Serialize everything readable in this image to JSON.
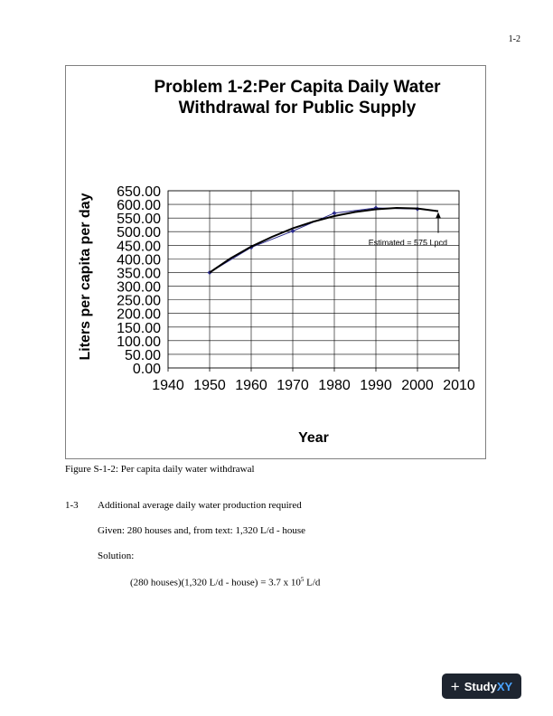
{
  "page": {
    "number": "1-2",
    "caption": "Figure S-1-2: Per capita daily water withdrawal"
  },
  "chart_data": {
    "type": "line",
    "title_line1": "Problem 1-2:Per Capita Daily Water",
    "title_line2": "Withdrawal for Public Supply",
    "xlabel": "Year",
    "ylabel": "Liters per capita per day",
    "xlim": [
      1940,
      2010
    ],
    "ylim": [
      0,
      650
    ],
    "x_ticks": [
      "1940",
      "1950",
      "1960",
      "1970",
      "1980",
      "1990",
      "2000",
      "2010"
    ],
    "y_ticks": [
      "0.00",
      "50.00",
      "100.00",
      "150.00",
      "200.00",
      "250.00",
      "300.00",
      "350.00",
      "400.00",
      "450.00",
      "500.00",
      "550.00",
      "600.00",
      "650.00"
    ],
    "grid": true,
    "series": [
      {
        "x": [
          1950,
          1960,
          1970,
          1980,
          1990,
          2000
        ],
        "y": [
          350,
          442,
          502,
          568,
          587,
          583
        ],
        "color": "#2b2b8c",
        "markers": true
      },
      {
        "x": [
          1950,
          1955,
          1960,
          1965,
          1970,
          1975,
          1980,
          1985,
          1990,
          1995,
          2000,
          2005
        ],
        "y": [
          350,
          402,
          445,
          481,
          512,
          537,
          557,
          572,
          582,
          587,
          585,
          575
        ],
        "color": "#000000",
        "markers": false
      }
    ],
    "annotation": {
      "text": "Estimated = 575 Lpcd",
      "x": 2005,
      "y": 575
    }
  },
  "text": {
    "problem_number": "1-3",
    "problem_title": "Additional average daily water production required",
    "given": "Given: 280 houses and, from text: 1,320 L/d - house",
    "solution_label": "Solution:",
    "equation_main": "(280 houses)(1,320 L/d - house) = 3.7 x 10",
    "equation_exp": "5",
    "equation_unit": " L/d"
  },
  "badge": {
    "plus": "+",
    "brand_main": "Study",
    "brand_accent": "XY",
    "accent_color": "#4aa3ff",
    "bg_color": "#1e2530"
  }
}
